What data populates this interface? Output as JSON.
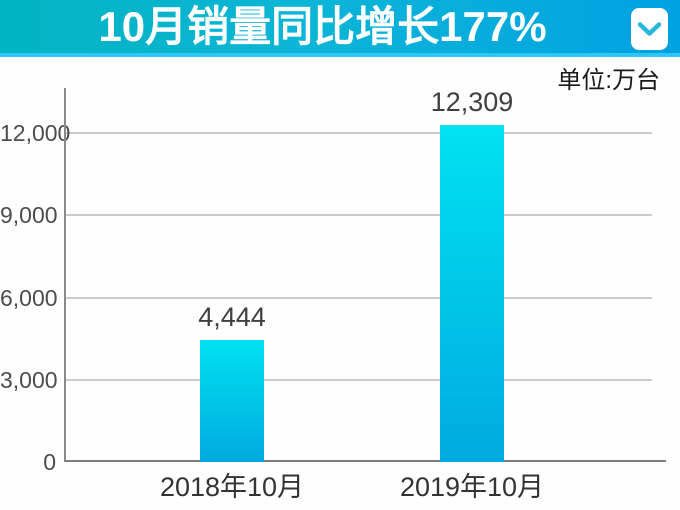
{
  "header": {
    "title": "10月销量同比增长177%",
    "gradient_left": "#00b4c1",
    "gradient_right": "#00a2e2",
    "stripe_color": "#2ec6f5",
    "collapse_icon": "chevron-down-icon",
    "collapse_icon_color": "#29b6dd"
  },
  "unit_label": "单位:万台",
  "chart_data": {
    "type": "bar",
    "title": "10月销量同比增长177%",
    "unit": "万台",
    "categories": [
      "2018年10月",
      "2019年10月"
    ],
    "values": [
      4444,
      12309
    ],
    "value_labels": [
      "4,444",
      "12,309"
    ],
    "y_ticks": [
      0,
      3000,
      6000,
      9000,
      12000
    ],
    "y_tick_labels": [
      "0",
      "3,000",
      "6,000",
      "9,000",
      "12,000"
    ],
    "ylim": [
      0,
      13600
    ],
    "xlabel": "",
    "ylabel": "",
    "grid": true,
    "legend": false,
    "bar_gradient_top": "#00e2f0",
    "bar_gradient_bottom": "#00aadf"
  }
}
